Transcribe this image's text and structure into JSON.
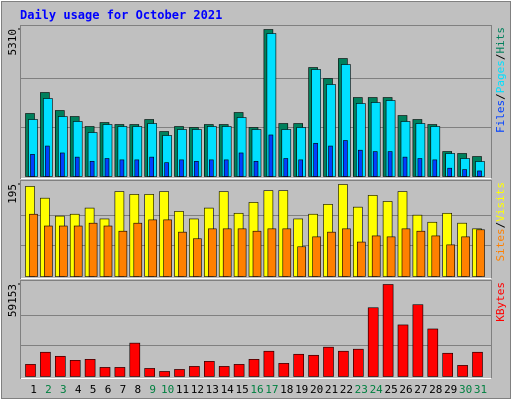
{
  "title": "Daily usage for October 2021",
  "legend_separator": "/",
  "chart_data": [
    {
      "type": "bar",
      "series": [
        {
          "name": "Hits",
          "color": "#00805c",
          "values": [
            2276,
            3034,
            2384,
            2167,
            1806,
            1950,
            1878,
            1878,
            2059,
            1625,
            1806,
            1770,
            1878,
            1878,
            2312,
            1770,
            5310,
            1914,
            1914,
            3937,
            3540,
            4262,
            2853,
            2853,
            2853,
            2203,
            2059,
            1878,
            903,
            831,
            722
          ]
        },
        {
          "name": "Pages",
          "color": "#00e0ff",
          "values": [
            2059,
            2817,
            2167,
            1987,
            1589,
            1878,
            1806,
            1806,
            1914,
            1481,
            1698,
            1698,
            1806,
            1806,
            2131,
            1698,
            5165,
            1698,
            1770,
            3865,
            3323,
            4045,
            2637,
            2673,
            2745,
            1987,
            1914,
            1806,
            831,
            650,
            542
          ]
        },
        {
          "name": "Files",
          "color": "#0040ff",
          "values": [
            800,
            1100,
            850,
            700,
            550,
            650,
            600,
            600,
            700,
            500,
            600,
            550,
            600,
            600,
            850,
            550,
            1500,
            650,
            600,
            1200,
            1100,
            1300,
            950,
            900,
            900,
            700,
            650,
            600,
            300,
            250,
            200
          ]
        }
      ],
      "ylim": [
        0,
        5310
      ],
      "yticks": [
        5310
      ]
    },
    {
      "type": "bar",
      "series": [
        {
          "name": "Visits",
          "color": "#ffff00",
          "values": [
            191,
            166,
            128,
            132,
            145,
            122,
            180,
            174,
            174,
            180,
            138,
            122,
            145,
            180,
            134,
            157,
            182,
            182,
            122,
            132,
            153,
            195,
            147,
            172,
            159,
            180,
            130,
            115,
            134,
            113,
            101
          ]
        },
        {
          "name": "Sites",
          "color": "#ff8000",
          "values": [
            132,
            107,
            107,
            107,
            113,
            107,
            96,
            113,
            120,
            120,
            94,
            80,
            101,
            101,
            101,
            96,
            101,
            101,
            63,
            84,
            94,
            101,
            73,
            86,
            84,
            101,
            96,
            86,
            67,
            84,
            99
          ]
        }
      ],
      "ylim": [
        0,
        195
      ],
      "yticks": [
        195
      ]
    },
    {
      "type": "bar",
      "categories": [
        "1",
        "2",
        "3",
        "4",
        "5",
        "6",
        "7",
        "8",
        "9",
        "10",
        "11",
        "12",
        "13",
        "14",
        "15",
        "16",
        "17",
        "18",
        "19",
        "20",
        "21",
        "22",
        "23",
        "24",
        "25",
        "26",
        "27",
        "28",
        "29",
        "30",
        "31"
      ],
      "category_colors": [
        "#000000",
        "#008040",
        "#008040",
        "#000000",
        "#000000",
        "#000000",
        "#000000",
        "#000000",
        "#008040",
        "#008040",
        "#000000",
        "#000000",
        "#000000",
        "#000000",
        "#000000",
        "#008040",
        "#008040",
        "#000000",
        "#000000",
        "#000000",
        "#000000",
        "#000000",
        "#008040",
        "#008040",
        "#000000",
        "#000000",
        "#000000",
        "#000000",
        "#000000",
        "#008040",
        "#008040"
      ],
      "series": [
        {
          "name": "KBytes",
          "color": "#ff0000",
          "values": [
            7800,
            15600,
            13000,
            10400,
            11050,
            5850,
            5850,
            21450,
            5200,
            3250,
            4550,
            6500,
            9750,
            6500,
            7800,
            11050,
            16250,
            8450,
            14300,
            13650,
            18850,
            16250,
            17550,
            44200,
            59153,
            33150,
            46150,
            30550,
            14950,
            7150,
            15600
          ]
        }
      ],
      "ylim": [
        0,
        59153
      ],
      "yticks": [
        59153
      ]
    }
  ]
}
